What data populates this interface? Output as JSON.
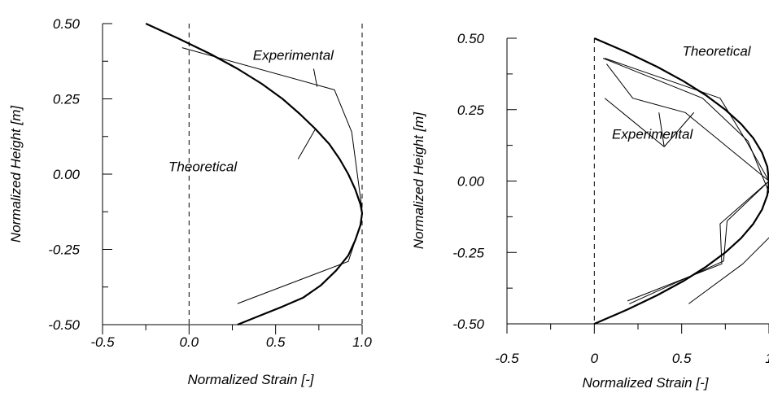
{
  "chart_data": [
    {
      "type": "line",
      "xlabel": "Normalized Strain [-]",
      "ylabel": "Normalized Height [m]",
      "xlim": [
        -0.5,
        1.0
      ],
      "ylim": [
        -0.5,
        0.5
      ],
      "xticks": [
        "-0.5",
        "0.0",
        "0.5",
        "1.0"
      ],
      "yticks": [
        "0.50",
        "0.25",
        "0.00",
        "-0.25",
        "-0.50"
      ],
      "ref_lines_x": [
        0,
        1
      ],
      "series": [
        {
          "name": "Theoretical",
          "x": [
            -0.25,
            -0.06,
            0.12,
            0.28,
            0.42,
            0.54,
            0.64,
            0.73,
            0.81,
            0.87,
            0.92,
            0.96,
            0.99,
            1.0,
            0.99,
            0.96,
            0.92,
            0.85,
            0.76,
            0.66,
            0.54,
            0.41,
            0.28
          ],
          "y": [
            0.5,
            0.45,
            0.4,
            0.35,
            0.3,
            0.25,
            0.2,
            0.15,
            0.1,
            0.05,
            0.0,
            -0.05,
            -0.1,
            -0.13,
            -0.17,
            -0.22,
            -0.27,
            -0.32,
            -0.37,
            -0.41,
            -0.44,
            -0.47,
            -0.5
          ]
        },
        {
          "name": "Experimental",
          "x": [
            -0.04,
            0.84,
            0.94,
            1.0,
            0.99,
            0.92,
            0.28
          ],
          "y": [
            0.42,
            0.28,
            0.14,
            -0.12,
            -0.17,
            -0.29,
            -0.43
          ]
        }
      ],
      "annotations": [
        {
          "text": "Experimental",
          "x": 0.98,
          "y": 0.39
        },
        {
          "text": "Theoretical",
          "x": 0.53,
          "y": 0.02
        }
      ]
    },
    {
      "type": "line",
      "xlabel": "Normalized Strain [-]",
      "ylabel": "Normalized Height [m]",
      "xlim": [
        -0.5,
        1.0
      ],
      "ylim": [
        -0.5,
        0.5
      ],
      "xticks": [
        "-0.5",
        "0",
        "0.5",
        "1"
      ],
      "yticks": [
        "0.50",
        "0.25",
        "0.00",
        "-0.25",
        "-0.50"
      ],
      "ref_lines_x": [
        0
      ],
      "series": [
        {
          "name": "Theoretical",
          "x": [
            0.0,
            0.19,
            0.36,
            0.51,
            0.64,
            0.75,
            0.84,
            0.91,
            0.96,
            0.99,
            1.0,
            0.99,
            0.96,
            0.91,
            0.84,
            0.75,
            0.64,
            0.51,
            0.36,
            0.19,
            0.0
          ],
          "y": [
            0.5,
            0.45,
            0.4,
            0.35,
            0.3,
            0.25,
            0.2,
            0.15,
            0.1,
            0.05,
            0.0,
            -0.05,
            -0.1,
            -0.15,
            -0.2,
            -0.25,
            -0.3,
            -0.35,
            -0.4,
            -0.45,
            -0.5
          ]
        },
        {
          "name": "Experimental",
          "x": [
            0.06,
            0.72,
            0.87,
            1.0,
            0.76,
            0.74,
            0.2
          ],
          "y": [
            0.43,
            0.29,
            0.14,
            0.0,
            -0.14,
            -0.28,
            -0.43
          ]
        },
        {
          "name": "Experimental",
          "x": [
            0.07,
            0.22,
            0.52,
            1.0,
            0.72,
            0.73,
            0.19
          ],
          "y": [
            0.41,
            0.29,
            0.24,
            0.0,
            -0.15,
            -0.29,
            -0.42
          ]
        },
        {
          "name": "Experimental",
          "x": [
            0.05,
            0.62,
            0.88,
            1.0,
            1.08,
            0.85,
            0.54
          ],
          "y": [
            0.43,
            0.29,
            0.14,
            -0.04,
            -0.15,
            -0.29,
            -0.43
          ]
        }
      ],
      "annotations": [
        {
          "text": "Theoretical",
          "x": 1.1,
          "y": 0.45
        },
        {
          "text": "Experimental",
          "x": 0.73,
          "y": 0.16
        }
      ]
    }
  ]
}
